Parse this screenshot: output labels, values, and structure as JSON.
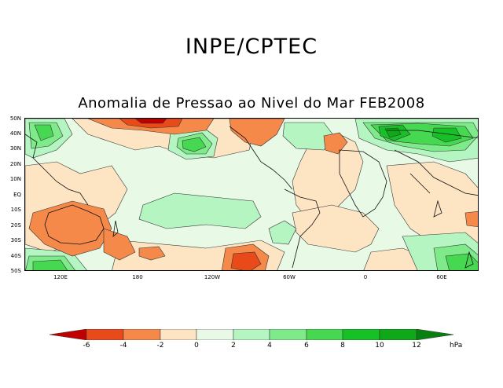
{
  "header": {
    "title": "INPE/CPTEC"
  },
  "map": {
    "title": "Anomalia de Pressao ao Nivel do Mar FEB2008",
    "latitude_labels": [
      "50N",
      "40N",
      "30N",
      "20N",
      "10N",
      "EQ",
      "10S",
      "20S",
      "30S",
      "40S",
      "50S"
    ],
    "longitude_labels": [
      "120E",
      "180",
      "120W",
      "60W",
      "0",
      "60E"
    ]
  },
  "colorbar": {
    "levels": [
      "-6",
      "-4",
      "-2",
      "0",
      "2",
      "4",
      "6",
      "8",
      "10",
      "12"
    ],
    "unit": "hPa",
    "colors": {
      "below_-6": "#c00000",
      "-6_-4": "#e84a1a",
      "-4_-2": "#f5894a",
      "-2_0": "#fde5c4",
      "0_2": "#e8fae6",
      "2_4": "#b4f5c2",
      "4_6": "#7eea8a",
      "6_8": "#46d850",
      "8_10": "#18c028",
      "10_12": "#0ea818",
      "above_12": "#078010"
    }
  }
}
